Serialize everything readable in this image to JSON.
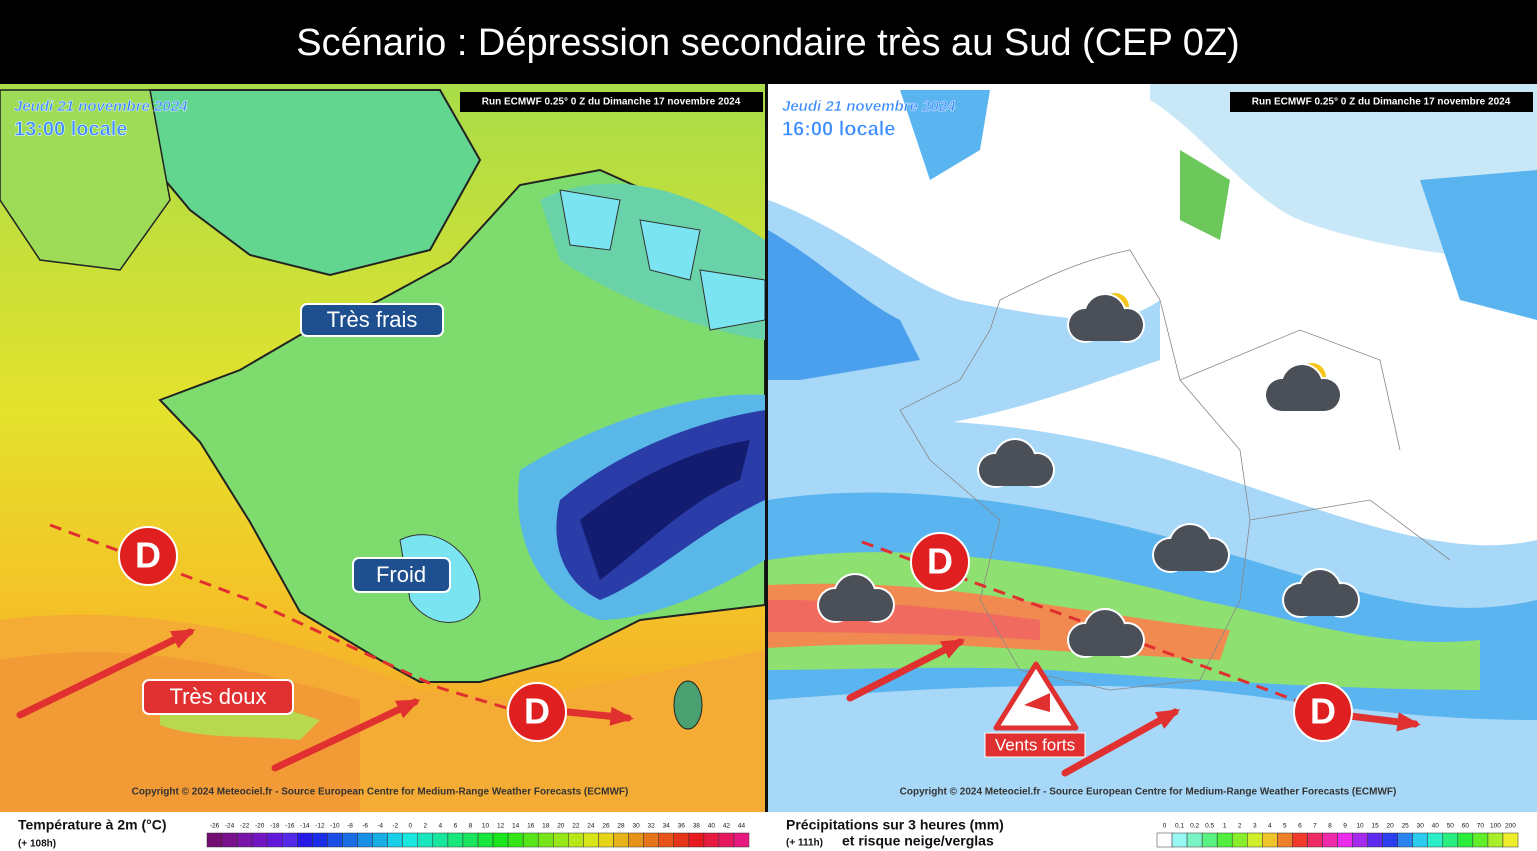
{
  "title": "Scénario : Dépression secondaire très au Sud (CEP 0Z)",
  "panels": [
    {
      "date": "Jeudi 21 novembre 2024",
      "time": "13:00 locale",
      "run": "Run ECMWF 0.25° 0 Z du Dimanche 17 novembre 2024",
      "copyright": "Copyright © 2024 Meteociel.fr - Source European Centre for Medium-Range Weather Forecasts (ECMWF)",
      "legend_title": "Température à 2m (°C)",
      "legend_note": "(+ 108h)",
      "legend_ticks": [
        "-26",
        "-24",
        "-22",
        "-20",
        "-18",
        "-16",
        "-14",
        "-12",
        "-10",
        "-8",
        "-6",
        "-4",
        "-2",
        "0",
        "2",
        "4",
        "6",
        "8",
        "10",
        "12",
        "14",
        "16",
        "18",
        "20",
        "22",
        "24",
        "26",
        "28",
        "30",
        "32",
        "34",
        "36",
        "38",
        "40",
        "42",
        "44"
      ],
      "annotations": [
        "Très frais",
        "Froid",
        "Très doux"
      ],
      "lows": [
        "D",
        "D"
      ]
    },
    {
      "date": "Jeudi 21 novembre 2024",
      "time": "16:00 locale",
      "run": "Run ECMWF 0.25° 0 Z du Dimanche 17 novembre 2024",
      "copyright": "Copyright © 2024 Meteociel.fr - Source European Centre for Medium-Range Weather Forecasts (ECMWF)",
      "legend_title": "Précipitations sur 3 heures (mm)",
      "legend_note": "(+ 111h)",
      "legend_subtitle": "et risque neige/verglas",
      "legend_ticks": [
        "0",
        "0.1",
        "0.2",
        "0.5",
        "1",
        "2",
        "3",
        "4",
        "5",
        "6",
        "7",
        "8",
        "9",
        "10",
        "15",
        "20",
        "25",
        "30",
        "40",
        "50",
        "60",
        "70",
        "100",
        "200"
      ],
      "annotations": [
        "Vents forts"
      ],
      "lows": [
        "D",
        "D"
      ]
    }
  ]
}
